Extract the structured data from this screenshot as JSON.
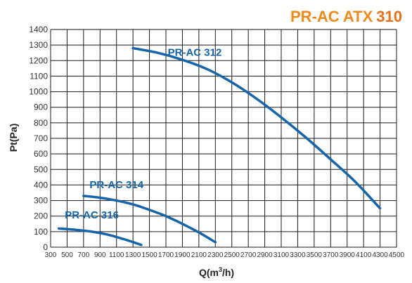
{
  "header": {
    "title_text": "PR-AC ATX",
    "title_number": "310"
  },
  "colors": {
    "title": "#f28a1b",
    "title_number": "#e8701a",
    "curve": "#1565a8",
    "grid": "#1a1a1a"
  },
  "chart_data": {
    "type": "line",
    "xlabel_base": "Q(m",
    "xlabel_sup": "3",
    "xlabel_tail": "/h)",
    "ylabel": "Pt(Pa)",
    "xlim": [
      300,
      4500
    ],
    "ylim": [
      0,
      1400
    ],
    "x_ticks": [
      300,
      500,
      700,
      900,
      1100,
      1300,
      1500,
      1700,
      1900,
      2100,
      2300,
      2500,
      2700,
      2900,
      3100,
      3300,
      3500,
      3700,
      3900,
      4100,
      4300,
      4500
    ],
    "y_ticks": [
      0,
      100,
      200,
      300,
      400,
      500,
      600,
      700,
      800,
      900,
      1000,
      1100,
      1200,
      1300,
      1400
    ],
    "grid": true,
    "series": [
      {
        "name": "PR-AC 312",
        "x": [
          1300,
          1600,
          1900,
          2200,
          2500,
          2800,
          3100,
          3400,
          3700,
          4000,
          4300
        ],
        "y": [
          1280,
          1250,
          1205,
          1145,
          1060,
          955,
          835,
          705,
          565,
          420,
          250
        ]
      },
      {
        "name": "PR-AC 314",
        "x": [
          700,
          900,
          1100,
          1300,
          1500,
          1700,
          1900,
          2100,
          2300
        ],
        "y": [
          330,
          318,
          300,
          275,
          240,
          200,
          150,
          95,
          32
        ]
      },
      {
        "name": "PR-AC 316",
        "x": [
          400,
          600,
          800,
          1000,
          1200,
          1400
        ],
        "y": [
          120,
          112,
          100,
          80,
          50,
          15
        ]
      }
    ]
  }
}
